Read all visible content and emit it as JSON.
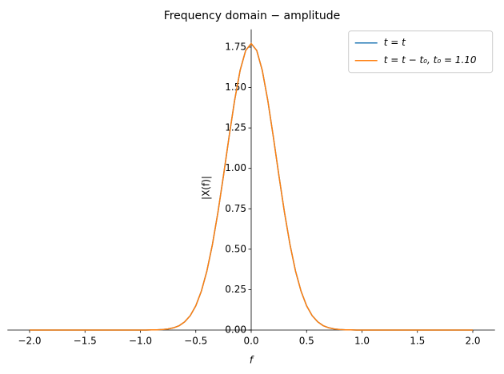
{
  "chart_data": {
    "type": "line",
    "title": "Frequency domain − amplitude",
    "x_label": "f",
    "y_label": "|X(f)|",
    "x": [
      -2,
      -1.5,
      -1,
      -0.95,
      -0.9,
      -0.85,
      -0.8,
      -0.75,
      -0.7,
      -0.65,
      -0.6,
      -0.55,
      -0.5,
      -0.45,
      -0.4,
      -0.35,
      -0.3,
      -0.25,
      -0.2,
      -0.15,
      -0.1,
      -0.05,
      0,
      0.05,
      0.1,
      0.15,
      0.2,
      0.25,
      0.3,
      0.35,
      0.4,
      0.45,
      0.5,
      0.55,
      0.6,
      0.65,
      0.7,
      0.75,
      0.8,
      0.85,
      0.9,
      0.95,
      1,
      1.5,
      2
    ],
    "series": [
      {
        "name": "t = t",
        "color": "#1f77b4",
        "values": [
          0,
          0,
          0,
          0,
          0.001,
          0.001,
          0.003,
          0.007,
          0.014,
          0.027,
          0.051,
          0.089,
          0.15,
          0.24,
          0.365,
          0.529,
          0.729,
          0.956,
          1.194,
          1.419,
          1.606,
          1.729,
          1.772,
          1.729,
          1.606,
          1.419,
          1.194,
          0.956,
          0.729,
          0.529,
          0.365,
          0.24,
          0.15,
          0.089,
          0.051,
          0.027,
          0.014,
          0.007,
          0.003,
          0.001,
          0.001,
          0,
          0,
          0,
          0
        ]
      },
      {
        "name": "t = t − t₀, t₀ = 1.10",
        "color": "#ff7f0e",
        "values": [
          0,
          0,
          0,
          0,
          0.001,
          0.001,
          0.003,
          0.007,
          0.014,
          0.027,
          0.051,
          0.089,
          0.15,
          0.24,
          0.365,
          0.529,
          0.729,
          0.956,
          1.194,
          1.419,
          1.606,
          1.729,
          1.772,
          1.729,
          1.606,
          1.419,
          1.194,
          0.956,
          0.729,
          0.529,
          0.365,
          0.24,
          0.15,
          0.089,
          0.051,
          0.027,
          0.014,
          0.007,
          0.003,
          0.001,
          0.001,
          0,
          0,
          0,
          0
        ]
      }
    ],
    "xlim": [
      -2.2,
      2.2
    ],
    "xticks": [
      {
        "value": -2,
        "label": "−2.0"
      },
      {
        "value": -1.5,
        "label": "−1.5"
      },
      {
        "value": -1,
        "label": "−1.0"
      },
      {
        "value": -0.5,
        "label": "−0.5"
      },
      {
        "value": 0,
        "label": "0.0"
      },
      {
        "value": 0.5,
        "label": "0.5"
      },
      {
        "value": 1,
        "label": "1.0"
      },
      {
        "value": 1.5,
        "label": "1.5"
      },
      {
        "value": 2,
        "label": "2.0"
      }
    ],
    "ylim": [
      0,
      1.86
    ],
    "yticks": [
      {
        "value": 0,
        "label": "0.00"
      },
      {
        "value": 0.25,
        "label": "0.25"
      },
      {
        "value": 0.5,
        "label": "0.50"
      },
      {
        "value": 0.75,
        "label": "0.75"
      },
      {
        "value": 1,
        "label": "1.00"
      },
      {
        "value": 1.25,
        "label": "1.25"
      },
      {
        "value": 1.5,
        "label": "1.50"
      },
      {
        "value": 1.75,
        "label": "1.75"
      }
    ],
    "grid": false,
    "legend": "upper right"
  }
}
